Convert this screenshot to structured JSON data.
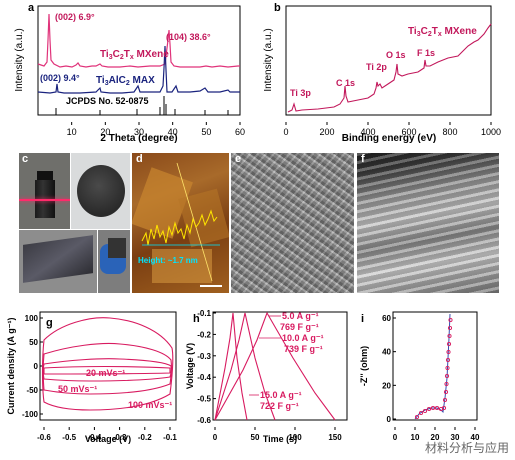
{
  "panels": {
    "a": {
      "letter": "a",
      "ylabel": "Intensity (a.u.)",
      "xlabel": "2 Theta (degree)",
      "xticks": [
        "10",
        "20",
        "30",
        "40",
        "50",
        "60"
      ],
      "annotations": {
        "peak002_mxene": "(002) 6.9°",
        "peak104": "(104) 38.6°",
        "peak002_max": "(002) 9.4°",
        "jcpds": "JCPDS No. 52-0875"
      },
      "series": [
        {
          "name": "Ti3C2Tx MXene",
          "color": "#c2185b"
        },
        {
          "name": "Ti3AlC2 MAX",
          "color": "#1a237e"
        }
      ]
    },
    "b": {
      "letter": "b",
      "ylabel": "Intensity (a.u.)",
      "xlabel": "Binding energy (eV)",
      "xticks": [
        "0",
        "200",
        "400",
        "600",
        "800",
        "1000"
      ],
      "title": "Ti3C2Tx MXene",
      "peaks": [
        "Ti 3p",
        "C 1s",
        "Ti 2p",
        "O 1s",
        "F 1s"
      ]
    },
    "c": {
      "letter": "c"
    },
    "d": {
      "letter": "d",
      "height_label": "Height: ~1.7 nm"
    },
    "e": {
      "letter": "e"
    },
    "f": {
      "letter": "f"
    },
    "g": {
      "letter": "g",
      "ylabel": "Current density (A g⁻¹)",
      "xlabel": "Voltage (V)",
      "xticks": [
        "-0.6",
        "-0.5",
        "-0.4",
        "-0.3",
        "-0.2",
        "-0.1"
      ],
      "yticks": [
        "100",
        "50",
        "0",
        "-50",
        "-100"
      ],
      "rates": [
        "20 mVs⁻¹",
        "50 mVs⁻¹",
        "100 mVs⁻¹"
      ]
    },
    "h": {
      "letter": "h",
      "ylabel": "Voltage (V)",
      "xlabel": "Time (s)",
      "xticks": [
        "0",
        "50",
        "100",
        "150"
      ],
      "yticks": [
        "-0.1",
        "-0.2",
        "-0.3",
        "-0.4",
        "-0.5",
        "-0.6"
      ],
      "labels": [
        {
          "current": "5.0 A g⁻¹",
          "cap": "769 F g⁻¹"
        },
        {
          "current": "10.0 A g⁻¹",
          "cap": "739 F g⁻¹"
        },
        {
          "current": "15.0 A g⁻¹",
          "cap": "722 F g⁻¹"
        }
      ]
    },
    "i": {
      "letter": "i",
      "ylabel": "-Z'' (ohm)",
      "xlabel": "Z' (ohm)",
      "xticks": [
        "0",
        "10",
        "20",
        "30",
        "40"
      ],
      "yticks": [
        "0",
        "20",
        "40",
        "60"
      ]
    }
  },
  "watermark": "材料分析与应用",
  "colors": {
    "pink": "#e0337a",
    "magenta": "#c2185b",
    "navy": "#1a237e",
    "blue": "#3949ab"
  }
}
